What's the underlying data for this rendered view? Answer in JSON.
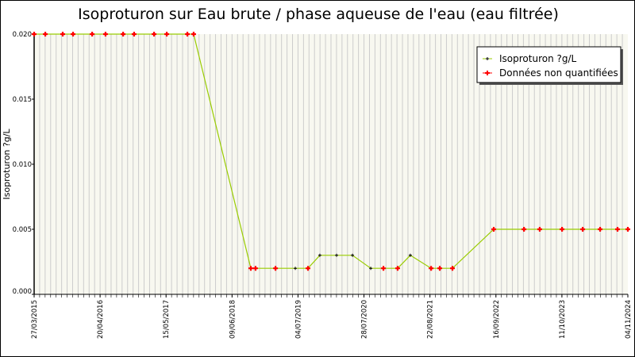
{
  "chart_data": {
    "type": "line",
    "title": "Isoproturon sur Eau brute / phase aqueuse de l'eau (eau filtrée)",
    "xlabel": "",
    "ylabel": "Isoproturon ?g/L",
    "xlim": [
      "2015-03-27",
      "2024-11-04"
    ],
    "ylim": [
      0,
      0.02
    ],
    "x_ticks": [
      "27/03/2015",
      "20/04/2016",
      "15/05/2017",
      "09/06/2018",
      "04/07/2019",
      "28/07/2020",
      "22/08/2021",
      "16/09/2022",
      "11/10/2023",
      "04/11/2024"
    ],
    "y_ticks": [
      "0.000",
      "0.005",
      "0.010",
      "0.015",
      "0.020"
    ],
    "grid": true,
    "legend_position": "top-right",
    "colors": {
      "line": "#99cc00",
      "quantified": "#000000",
      "non_quantified": "#ff0000",
      "plot_bg": "#f8f8f0",
      "grid": "#cccccc"
    },
    "series": [
      {
        "name": "Isoproturon ?g/L",
        "points": [
          [
            "2015-03-27",
            0.02,
            "nq"
          ],
          [
            "2015-06-01",
            0.02,
            "nq"
          ],
          [
            "2015-09-12",
            0.02,
            "nq"
          ],
          [
            "2015-11-12",
            0.02,
            "nq"
          ],
          [
            "2016-03-04",
            0.02,
            "nq"
          ],
          [
            "2016-05-22",
            0.02,
            "nq"
          ],
          [
            "2016-09-03",
            0.02,
            "nq"
          ],
          [
            "2016-11-07",
            0.02,
            "nq"
          ],
          [
            "2017-03-05",
            0.02,
            "nq"
          ],
          [
            "2017-05-19",
            0.02,
            "nq"
          ],
          [
            "2017-09-18",
            0.02,
            "nq"
          ],
          [
            "2017-10-25",
            0.02,
            "nq"
          ],
          [
            "2018-09-28",
            0.002,
            "nq"
          ],
          [
            "2018-10-26",
            0.002,
            "nq"
          ],
          [
            "2019-02-21",
            0.002,
            "nq"
          ],
          [
            "2019-06-18",
            0.002,
            "q"
          ],
          [
            "2019-09-01",
            0.002,
            "nq"
          ],
          [
            "2019-11-10",
            0.003,
            "q"
          ],
          [
            "2020-02-17",
            0.003,
            "q"
          ],
          [
            "2020-05-21",
            0.003,
            "q"
          ],
          [
            "2020-09-06",
            0.002,
            "q"
          ],
          [
            "2020-11-20",
            0.002,
            "nq"
          ],
          [
            "2021-02-12",
            0.002,
            "nq"
          ],
          [
            "2021-04-28",
            0.003,
            "q"
          ],
          [
            "2021-08-29",
            0.002,
            "nq"
          ],
          [
            "2021-10-19",
            0.002,
            "nq"
          ],
          [
            "2022-01-02",
            0.002,
            "nq"
          ],
          [
            "2022-09-03",
            0.005,
            "nq"
          ],
          [
            "2023-03-01",
            0.005,
            "nq"
          ],
          [
            "2023-06-02",
            0.005,
            "nq"
          ],
          [
            "2023-10-12",
            0.005,
            "nq"
          ],
          [
            "2024-02-11",
            0.005,
            "nq"
          ],
          [
            "2024-05-24",
            0.005,
            "nq"
          ],
          [
            "2024-09-04",
            0.005,
            "nq"
          ],
          [
            "2024-11-04",
            0.005,
            "nq"
          ]
        ]
      }
    ],
    "legend": [
      "Isoproturon ?g/L",
      "Données non quantifiées"
    ]
  }
}
